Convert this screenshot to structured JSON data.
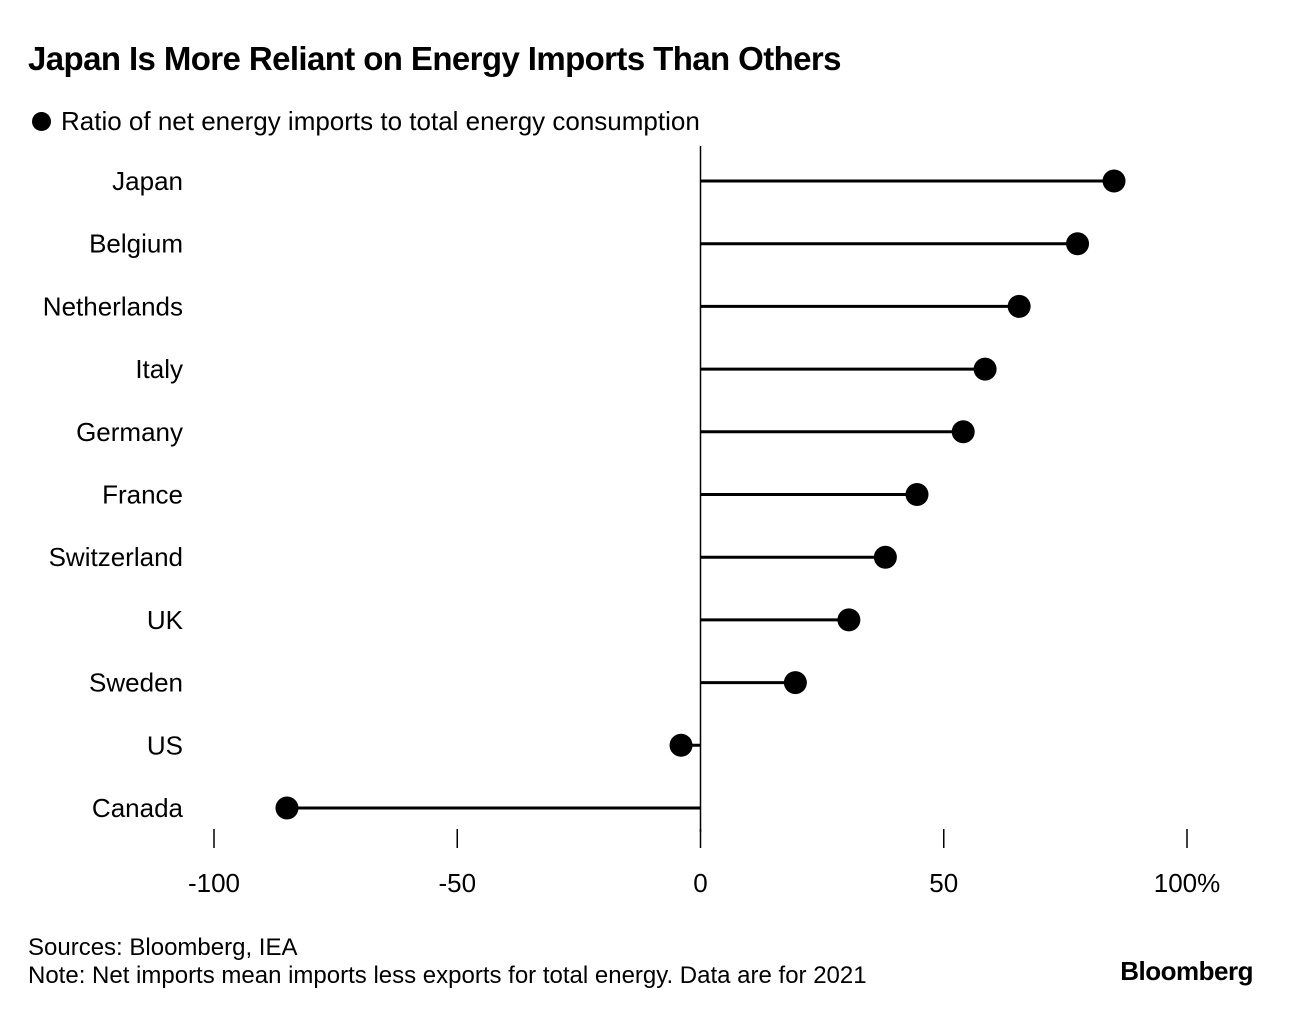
{
  "header": {
    "title": "Japan Is More Reliant on Energy Imports Than Others",
    "legend_label": "Ratio of net energy imports to total energy consumption"
  },
  "chart_data": {
    "type": "lollipop",
    "orientation": "horizontal",
    "title": "Japan Is More Reliant on Energy Imports Than Others",
    "series": [
      {
        "name": "Ratio of net energy imports to total energy consumption",
        "color": "#000000",
        "values": [
          85,
          77.5,
          65.5,
          58.5,
          54,
          44.5,
          38,
          30.5,
          19.5,
          -4,
          -85
        ]
      }
    ],
    "categories": [
      "Japan",
      "Belgium",
      "Netherlands",
      "Italy",
      "Germany",
      "France",
      "Switzerland",
      "UK",
      "Sweden",
      "US",
      "Canada"
    ],
    "xlim": [
      -100,
      100
    ],
    "xticks": [
      -100,
      -50,
      0,
      50,
      100
    ],
    "xtick_labels": [
      "-100",
      "-50",
      "0",
      "50",
      "100%"
    ],
    "xlabel": "",
    "ylabel": "",
    "grid": false,
    "legend_position": "top-left"
  },
  "footer": {
    "sources": "Sources: Bloomberg, IEA",
    "note": "Note: Net imports mean imports less exports for total energy. Data are for 2021",
    "brand": "Bloomberg"
  }
}
